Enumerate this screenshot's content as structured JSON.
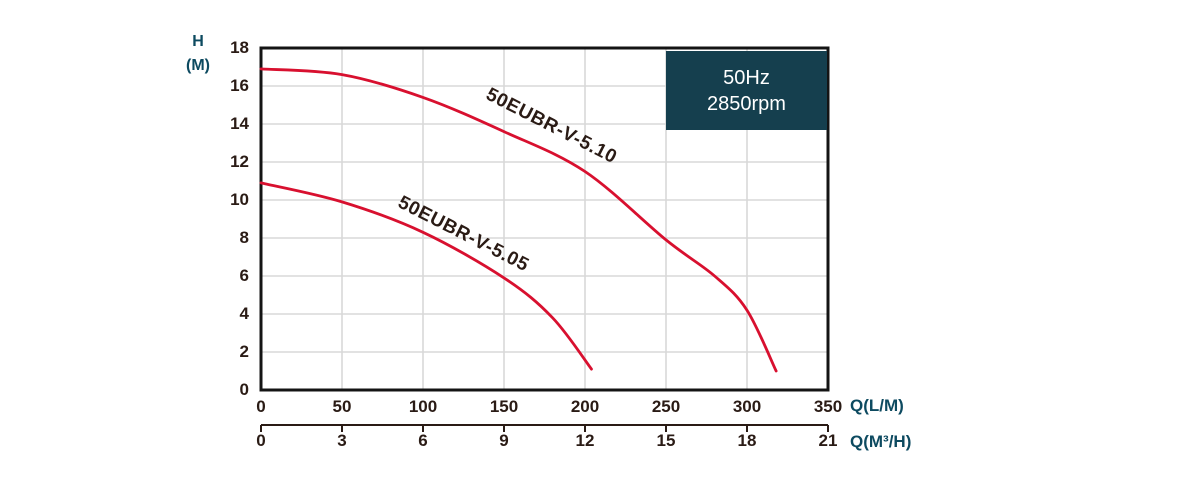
{
  "header_box": {
    "line1": "50Hz",
    "line2": "2850rpm",
    "bg_color": "#153f4e",
    "text_color": "#ffffff"
  },
  "chart_data": {
    "type": "line",
    "title": "",
    "grid": true,
    "legend_position": "inline-curve-labels",
    "y_axis": {
      "label_line1": "H",
      "label_line2": "(M)",
      "min": 0,
      "max": 18,
      "tick_step": 2,
      "ticks": [
        0,
        2,
        4,
        6,
        8,
        10,
        12,
        14,
        16,
        18
      ]
    },
    "x_axis_primary": {
      "label": "Q(L/M)",
      "min": 0,
      "max": 350,
      "tick_step": 50,
      "ticks": [
        0,
        50,
        100,
        150,
        200,
        250,
        300,
        350
      ]
    },
    "x_axis_secondary": {
      "label": "Q(M³/H)",
      "min": 0,
      "max": 21,
      "tick_step": 3,
      "ticks": [
        0,
        3,
        6,
        9,
        12,
        15,
        18,
        21
      ]
    },
    "series": [
      {
        "name": "50EUBR-V-5.10",
        "x_unit": "L/M",
        "points": [
          [
            0,
            16.9
          ],
          [
            50,
            16.6
          ],
          [
            100,
            15.4
          ],
          [
            150,
            13.6
          ],
          [
            200,
            11.5
          ],
          [
            250,
            7.9
          ],
          [
            280,
            6.0
          ],
          [
            300,
            4.2
          ],
          [
            318,
            1.0
          ]
        ]
      },
      {
        "name": "50EUBR-V-5.05",
        "x_unit": "L/M",
        "points": [
          [
            0,
            10.9
          ],
          [
            50,
            9.9
          ],
          [
            100,
            8.3
          ],
          [
            150,
            5.9
          ],
          [
            180,
            3.8
          ],
          [
            204,
            1.1
          ]
        ]
      }
    ],
    "curve_color": "#d8102f"
  },
  "colors": {
    "background": "#ffffff",
    "curve": "#d8102f",
    "grid": "#d8d8d8",
    "border": "#141414",
    "axis_text": "#2a1b15",
    "teal_text": "#0d4a60",
    "box_bg": "#153f4e"
  }
}
